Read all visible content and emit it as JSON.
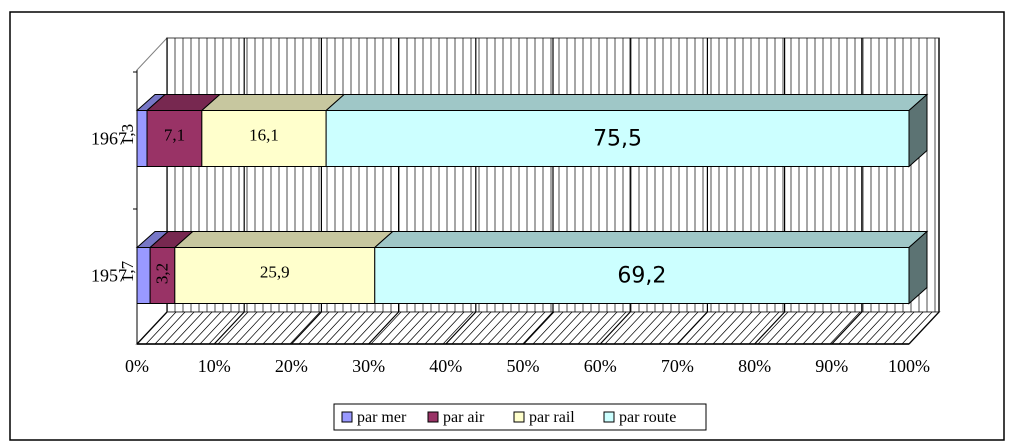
{
  "chart_data": {
    "type": "bar",
    "stacked": "percent",
    "orientation": "horizontal",
    "three_d": true,
    "categories": [
      "1957",
      "1967"
    ],
    "series": [
      {
        "name": "par mer",
        "values": [
          1.7,
          1.3
        ],
        "labels": [
          "1,7",
          "1,3"
        ],
        "color": "#9999FF"
      },
      {
        "name": "par air",
        "values": [
          3.2,
          7.1
        ],
        "labels": [
          "3,2",
          "7,1"
        ],
        "color": "#993366"
      },
      {
        "name": "par rail",
        "values": [
          25.9,
          16.1
        ],
        "labels": [
          "25,9",
          "16,1"
        ],
        "color": "#FFFFCC"
      },
      {
        "name": "par route",
        "values": [
          69.2,
          75.5
        ],
        "labels": [
          "69,2",
          "75,5"
        ],
        "color": "#CCFFFF"
      }
    ],
    "x_ticks": [
      "0%",
      "10%",
      "20%",
      "30%",
      "40%",
      "50%",
      "60%",
      "70%",
      "80%",
      "90%",
      "100%"
    ],
    "xlim": [
      0,
      100
    ],
    "grid": true,
    "legend_position": "bottom"
  }
}
